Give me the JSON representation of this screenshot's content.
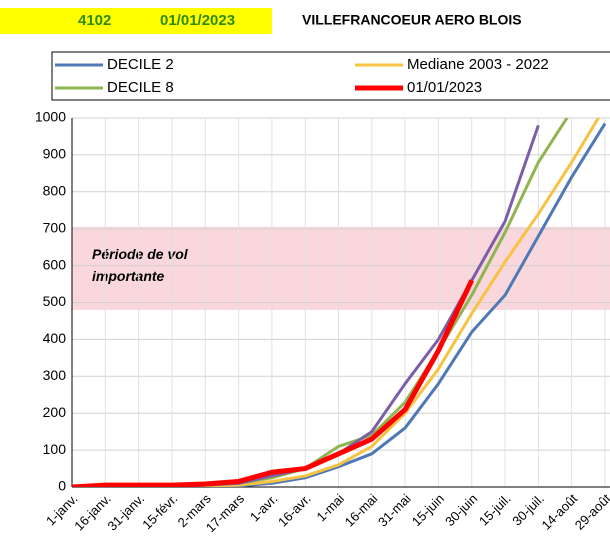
{
  "chart_data": {
    "type": "line",
    "code": "4102",
    "date": "01/01/2023",
    "title": "VILLEFRANCOEUR AERO BLOIS",
    "categories": [
      "1-janv.",
      "16-janv.",
      "31-janv.",
      "15-févr.",
      "2-mars",
      "17-mars",
      "1-avr.",
      "16-avr.",
      "1-mai",
      "16-mai",
      "31-mai",
      "15-juin",
      "30-juin",
      "15-juil.",
      "30-juil.",
      "14-août",
      "29-août"
    ],
    "series": [
      {
        "name": "DECILE 2",
        "color": "#4f79b5",
        "values": [
          0,
          0,
          0,
          0,
          2,
          3,
          10,
          25,
          55,
          90,
          160,
          280,
          420,
          520,
          680,
          840,
          985
        ]
      },
      {
        "name": "Mediane 2003 - 2022",
        "color": "#f6c343",
        "values": [
          0,
          0,
          0,
          0,
          3,
          5,
          15,
          30,
          60,
          110,
          200,
          320,
          470,
          610,
          740,
          880,
          1030
        ]
      },
      {
        "name": "DECILE 8",
        "color": "#8fb54e",
        "values": [
          0,
          0,
          0,
          0,
          5,
          10,
          25,
          50,
          110,
          140,
          230,
          370,
          520,
          690,
          880,
          1020,
          null
        ]
      },
      {
        "color": "#7b5ea7",
        "values": [
          0,
          0,
          0,
          0,
          5,
          10,
          30,
          50,
          90,
          150,
          280,
          400,
          560,
          720,
          980,
          null,
          null
        ]
      },
      {
        "name": "01/01/2023",
        "color": "#ff0000",
        "values": [
          0,
          5,
          5,
          5,
          8,
          15,
          40,
          50,
          90,
          130,
          210,
          370,
          560,
          null,
          null,
          null,
          null
        ]
      }
    ],
    "band": [
      480,
      705
    ],
    "band_label": "Période de vol importante",
    "ylim": [
      0,
      1000
    ],
    "yticks": [
      0,
      100,
      200,
      300,
      400,
      500,
      600,
      700,
      800,
      900,
      1000
    ],
    "grid": true
  }
}
